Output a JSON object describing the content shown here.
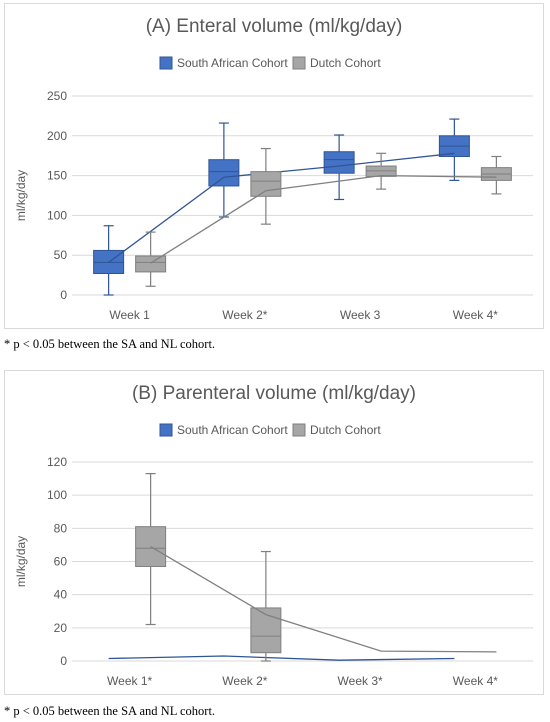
{
  "figure": {
    "footnote_a": "* p < 0.05 between the SA and NL cohort.",
    "footnote_b": "* p < 0.05 between the SA and NL cohort."
  },
  "colors": {
    "sa_fill": "#4472c4",
    "sa_stroke": "#2f5597",
    "sa_line": "#2f5597",
    "nl_fill": "#a6a6a6",
    "nl_stroke": "#7f7f7f",
    "nl_line": "#808080",
    "grid": "#d9d9d9",
    "text": "#595959"
  },
  "chart_data": [
    {
      "type": "box",
      "title": "(A) Enteral volume (ml/kg/day)",
      "xlabel": "",
      "ylabel": "ml/kg/day",
      "ylim": [
        0,
        250
      ],
      "yticks": [
        0,
        50,
        100,
        150,
        200,
        250
      ],
      "grid": true,
      "legend_position": "top",
      "categories": [
        "Week 1",
        "Week 2*",
        "Week 3",
        "Week 4*"
      ],
      "series": [
        {
          "name": "South African Cohort",
          "color_key": "sa",
          "boxes": [
            {
              "min": 0,
              "q1": 27,
              "median": 41,
              "q3": 56,
              "max": 87,
              "mean": 41
            },
            {
              "min": 98,
              "q1": 137,
              "median": 155,
              "q3": 170,
              "max": 216,
              "mean": 148
            },
            {
              "min": 120,
              "q1": 153,
              "median": 170,
              "q3": 180,
              "max": 201,
              "mean": 162
            },
            {
              "min": 144,
              "q1": 174,
              "median": 187,
              "q3": 200,
              "max": 221,
              "mean": 178
            }
          ]
        },
        {
          "name": "Dutch Cohort",
          "color_key": "nl",
          "boxes": [
            {
              "min": 11,
              "q1": 29,
              "median": 41,
              "q3": 49,
              "max": 79,
              "mean": 40
            },
            {
              "min": 89,
              "q1": 124,
              "median": 143,
              "q3": 155,
              "max": 184,
              "mean": 131
            },
            {
              "min": 133,
              "q1": 149,
              "median": 156,
              "q3": 162,
              "max": 178,
              "mean": 150
            },
            {
              "min": 127,
              "q1": 144,
              "median": 152,
              "q3": 160,
              "max": 174,
              "mean": 148
            }
          ]
        }
      ]
    },
    {
      "type": "box",
      "title": "(B) Parenteral volume (ml/kg/day)",
      "xlabel": "",
      "ylabel": "ml/kg/day",
      "ylim": [
        0,
        120
      ],
      "yticks": [
        0,
        20,
        40,
        60,
        80,
        100,
        120
      ],
      "grid": true,
      "legend_position": "top",
      "categories": [
        "Week 1*",
        "Week 2*",
        "Week 3*",
        "Week 4*"
      ],
      "series": [
        {
          "name": "South African Cohort",
          "color_key": "sa",
          "boxes": [
            {
              "min": 1.5,
              "q1": 1.5,
              "median": 1.5,
              "q3": 1.5,
              "max": 1.5,
              "mean": 1.5
            },
            {
              "min": 3,
              "q1": 3,
              "median": 3,
              "q3": 3,
              "max": 3,
              "mean": 3
            },
            {
              "min": 0.5,
              "q1": 0.5,
              "median": 0.5,
              "q3": 0.5,
              "max": 0.5,
              "mean": 0.5
            },
            {
              "min": 1.5,
              "q1": 1.5,
              "median": 1.5,
              "q3": 1.5,
              "max": 1.5,
              "mean": 1.5
            }
          ]
        },
        {
          "name": "Dutch Cohort",
          "color_key": "nl",
          "boxes": [
            {
              "min": 22,
              "q1": 57,
              "median": 68,
              "q3": 81,
              "max": 113,
              "mean": 69
            },
            {
              "min": 0,
              "q1": 5,
              "median": 15,
              "q3": 32,
              "max": 66,
              "mean": 28
            },
            {
              "min": 6,
              "q1": 6,
              "median": 6,
              "q3": 6,
              "max": 6,
              "mean": 6
            },
            {
              "min": 5.5,
              "q1": 5.5,
              "median": 5.5,
              "q3": 5.5,
              "max": 5.5,
              "mean": 5.5
            }
          ]
        }
      ]
    }
  ]
}
